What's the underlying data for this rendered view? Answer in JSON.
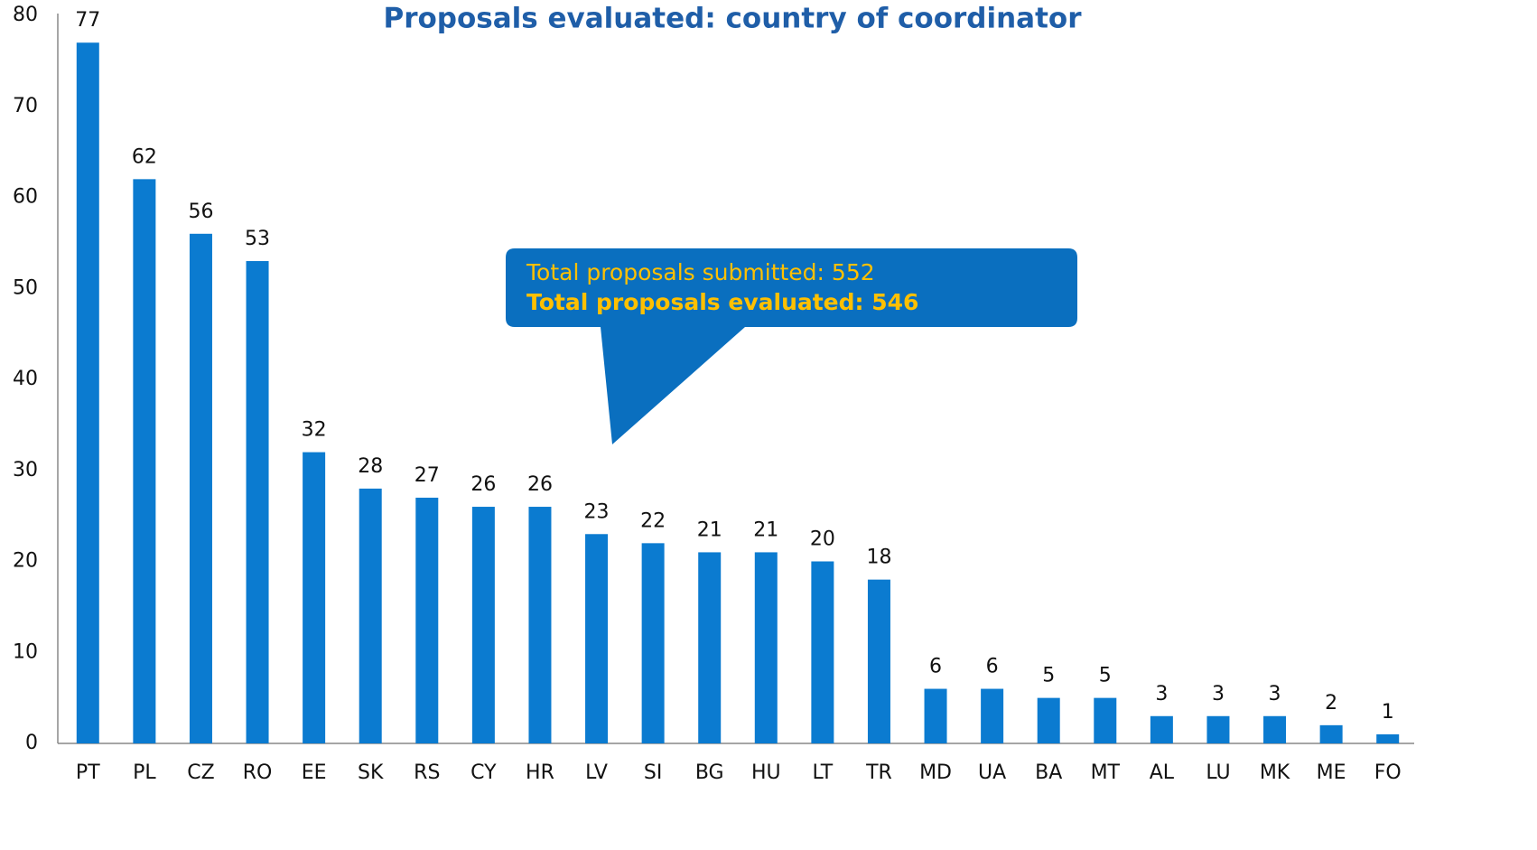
{
  "chart_data": {
    "type": "bar",
    "title": "Proposals evaluated: country of coordinator",
    "categories": [
      "PT",
      "PL",
      "CZ",
      "RO",
      "EE",
      "SK",
      "RS",
      "CY",
      "HR",
      "LV",
      "SI",
      "BG",
      "HU",
      "LT",
      "TR",
      "MD",
      "UA",
      "BA",
      "MT",
      "AL",
      "LU",
      "MK",
      "ME",
      "FO"
    ],
    "values": [
      77,
      62,
      56,
      53,
      32,
      28,
      27,
      26,
      26,
      23,
      22,
      21,
      21,
      20,
      18,
      6,
      6,
      5,
      5,
      3,
      3,
      3,
      2,
      1
    ],
    "color": "#0b7bd0",
    "ylim": [
      0,
      80
    ],
    "yticks": [
      0,
      10,
      20,
      30,
      40,
      50,
      60,
      70,
      80
    ],
    "grid": false,
    "annotations": [
      "Total proposals submitted: 552",
      "Total proposals evaluated: 546"
    ]
  }
}
